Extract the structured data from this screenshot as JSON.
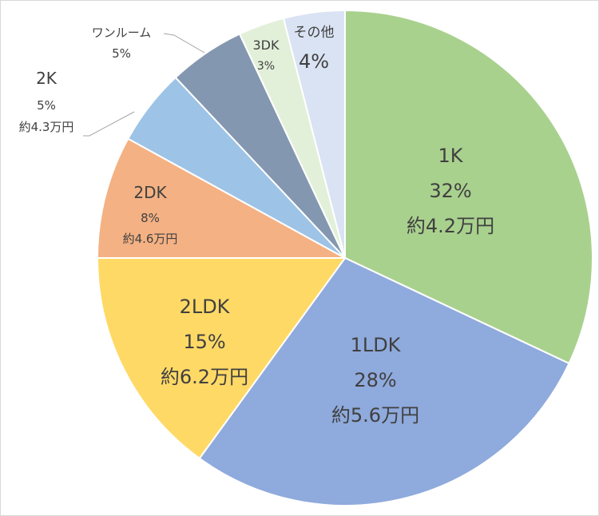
{
  "chart_data": {
    "type": "pie",
    "title": "",
    "start_angle_deg": 0,
    "direction": "clockwise",
    "slices": [
      {
        "category": "1K",
        "percent": 32,
        "percent_label": "32%",
        "rent": "約4.2万円",
        "color": "#a9d18e"
      },
      {
        "category": "1LDK",
        "percent": 28,
        "percent_label": "28%",
        "rent": "約5.6万円",
        "color": "#8faadc"
      },
      {
        "category": "2LDK",
        "percent": 15,
        "percent_label": "15%",
        "rent": "約6.2万円",
        "color": "#ffd966"
      },
      {
        "category": "2DK",
        "percent": 8,
        "percent_label": "8%",
        "rent": "約4.6万円",
        "color": "#f4b183"
      },
      {
        "category": "2K",
        "percent": 5,
        "percent_label": "5%",
        "rent": "約4.3万円",
        "color": "#9dc3e6"
      },
      {
        "category": "ワンルーム",
        "percent": 5,
        "percent_label": "5%",
        "rent": "",
        "color": "#8497b0"
      },
      {
        "category": "3DK",
        "percent": 3,
        "percent_label": "3%",
        "rent": "",
        "color": "#e2f0d9"
      },
      {
        "category": "その他",
        "percent": 4,
        "percent_label": "4%",
        "rent": "",
        "color": "#dae3f3"
      }
    ]
  }
}
